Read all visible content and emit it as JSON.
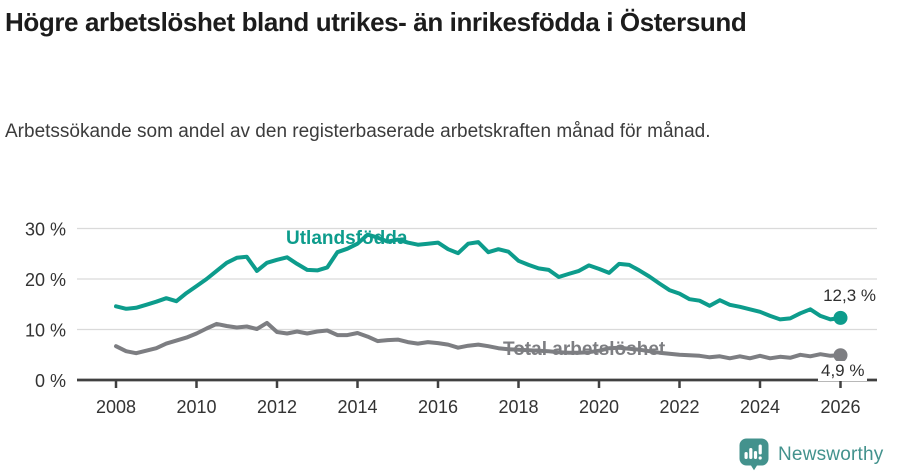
{
  "header": {
    "title": "Högre arbetslöshet bland utrikes- än inrikesfödda i Östersund",
    "subtitle": "Arbetssökande som andel av den registerbaserade arbetskraften månad för månad."
  },
  "chart_data": {
    "type": "line",
    "title": "Högre arbetslöshet bland utrikes- än inrikesfödda i Östersund",
    "subtitle": "Arbetssökande som andel av den registerbaserade arbetskraften månad för månad.",
    "x_start": 2008.0,
    "x_step": 0.25,
    "x_ticks": [
      2008,
      2010,
      2012,
      2014,
      2016,
      2018,
      2020,
      2022,
      2024,
      2026
    ],
    "x_tick_labels": [
      "2008",
      "2010",
      "2012",
      "2014",
      "2016",
      "2018",
      "2020",
      "2022",
      "2024",
      "2026"
    ],
    "y_ticks": [
      0,
      10,
      20,
      30
    ],
    "y_tick_labels": [
      "0 %",
      "10 %",
      "20 %",
      "30 %"
    ],
    "ylim": [
      0,
      31
    ],
    "grid": true,
    "legend_position": "inline-labels",
    "series": [
      {
        "name": "Utlandsfödda",
        "color": "#0d9c8c",
        "end_label": "12,3 %",
        "end_value": 12.3,
        "values": [
          14.6,
          14.1,
          14.3,
          14.9,
          15.5,
          16.2,
          15.6,
          17.2,
          18.6,
          20.0,
          21.6,
          23.2,
          24.2,
          24.4,
          21.6,
          23.2,
          23.8,
          24.3,
          23.0,
          21.8,
          21.7,
          22.3,
          25.3,
          26.0,
          27.0,
          28.8,
          28.2,
          27.4,
          27.8,
          27.2,
          26.8,
          27.0,
          27.2,
          25.9,
          25.1,
          27.0,
          27.3,
          25.3,
          25.9,
          25.4,
          23.6,
          22.8,
          22.1,
          21.8,
          20.4,
          21.0,
          21.6,
          22.7,
          22.0,
          21.2,
          23.0,
          22.8,
          21.7,
          20.5,
          19.1,
          17.8,
          17.1,
          16.0,
          15.7,
          14.7,
          15.8,
          14.9,
          14.5,
          14.0,
          13.5,
          12.7,
          12.0,
          12.2,
          13.2,
          14.0,
          12.7,
          12.0,
          12.3
        ]
      },
      {
        "name": "Total arbetslöshet",
        "color": "#7d7e82",
        "end_label": "4,9 %",
        "end_value": 4.9,
        "values": [
          6.7,
          5.7,
          5.3,
          5.8,
          6.3,
          7.2,
          7.8,
          8.4,
          9.2,
          10.2,
          11.1,
          10.7,
          10.4,
          10.6,
          10.1,
          11.3,
          9.5,
          9.2,
          9.6,
          9.2,
          9.6,
          9.8,
          8.9,
          8.9,
          9.3,
          8.6,
          7.7,
          7.9,
          8.0,
          7.5,
          7.2,
          7.5,
          7.3,
          7.0,
          6.4,
          6.8,
          7.0,
          6.7,
          6.3,
          6.1,
          6.0,
          5.9,
          5.8,
          5.7,
          5.5,
          5.4,
          5.4,
          5.5,
          5.8,
          6.3,
          6.4,
          6.2,
          6.0,
          5.7,
          5.4,
          5.2,
          5.0,
          4.9,
          4.8,
          4.5,
          4.7,
          4.3,
          4.7,
          4.3,
          4.8,
          4.3,
          4.6,
          4.4,
          5.0,
          4.7,
          5.1,
          4.8,
          4.9
        ]
      }
    ]
  },
  "footer": {
    "brand": "Newsworthy",
    "logo_icon": "bar-chart-exclamation-bubble-icon",
    "brand_color": "#43928d"
  },
  "colors": {
    "foreign_born_line": "#0d9c8c",
    "total_line": "#7d7e82",
    "gridline": "#dadada",
    "axis": "#404040",
    "tick_text": "#333333",
    "title_text": "#1c1c1c"
  }
}
